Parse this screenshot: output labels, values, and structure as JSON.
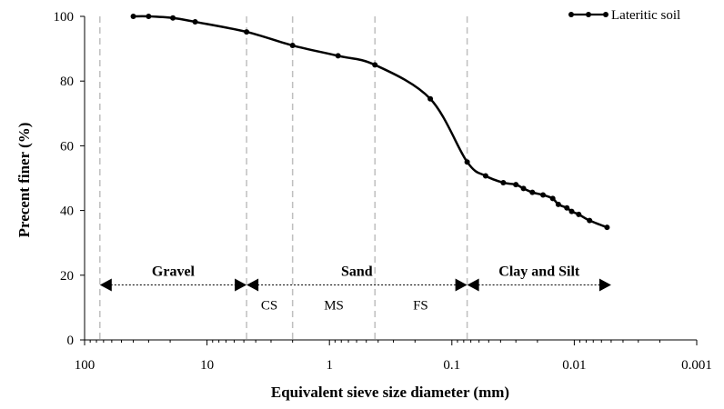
{
  "chart_data": {
    "type": "line",
    "title": "",
    "xlabel": "Equivalent sieve size diameter (mm)",
    "ylabel": "Precent finer (%)",
    "xscale": "log",
    "xaxis_reversed": true,
    "xlim": [
      100,
      0.001
    ],
    "ylim": [
      0,
      100
    ],
    "xticks": [
      100,
      10,
      1,
      0.1,
      0.01,
      0.001
    ],
    "xtick_labels": [
      "100",
      "10",
      "1",
      "0.1",
      "0.01",
      "0.001"
    ],
    "yticks": [
      0,
      20,
      40,
      60,
      80,
      100
    ],
    "ytick_labels": [
      "0",
      "20",
      "40",
      "60",
      "80",
      "100"
    ],
    "grid": false,
    "legend_position": "top-right",
    "series": [
      {
        "name": "Lateritic soil",
        "color": "#000000",
        "marker": "circle",
        "x": [
          40,
          30,
          19,
          12.5,
          4.75,
          2,
          0.85,
          0.425,
          0.15,
          0.075,
          0.053,
          0.038,
          0.03,
          0.026,
          0.022,
          0.018,
          0.015,
          0.0135,
          0.0115,
          0.0105,
          0.0092,
          0.0075,
          0.0054
        ],
        "y": [
          100,
          100,
          99.5,
          98.3,
          95.2,
          91.0,
          87.8,
          85.0,
          74.5,
          55.0,
          50.7,
          48.6,
          48.0,
          46.8,
          45.6,
          44.8,
          43.7,
          41.9,
          40.8,
          39.7,
          38.8,
          36.9,
          34.8
        ]
      }
    ],
    "boundaries": [
      75,
      4.75,
      2,
      0.425,
      0.075
    ],
    "boundary_style": "dashed",
    "boundary_color": "#bfbfbf",
    "regions": [
      {
        "label": "Gravel",
        "from": 75,
        "to": 4.75,
        "y": 17,
        "weight": "bold"
      },
      {
        "label": "Sand",
        "from": 4.75,
        "to": 0.075,
        "y": 17,
        "weight": "bold"
      },
      {
        "label": "Clay and Silt",
        "from": 0.075,
        "to": 0.005,
        "y": 17,
        "weight": "bold"
      }
    ],
    "subregions": [
      {
        "label": "CS",
        "center": 3.1
      },
      {
        "label": "MS",
        "center": 0.92
      },
      {
        "label": "FS",
        "center": 0.18
      }
    ]
  }
}
